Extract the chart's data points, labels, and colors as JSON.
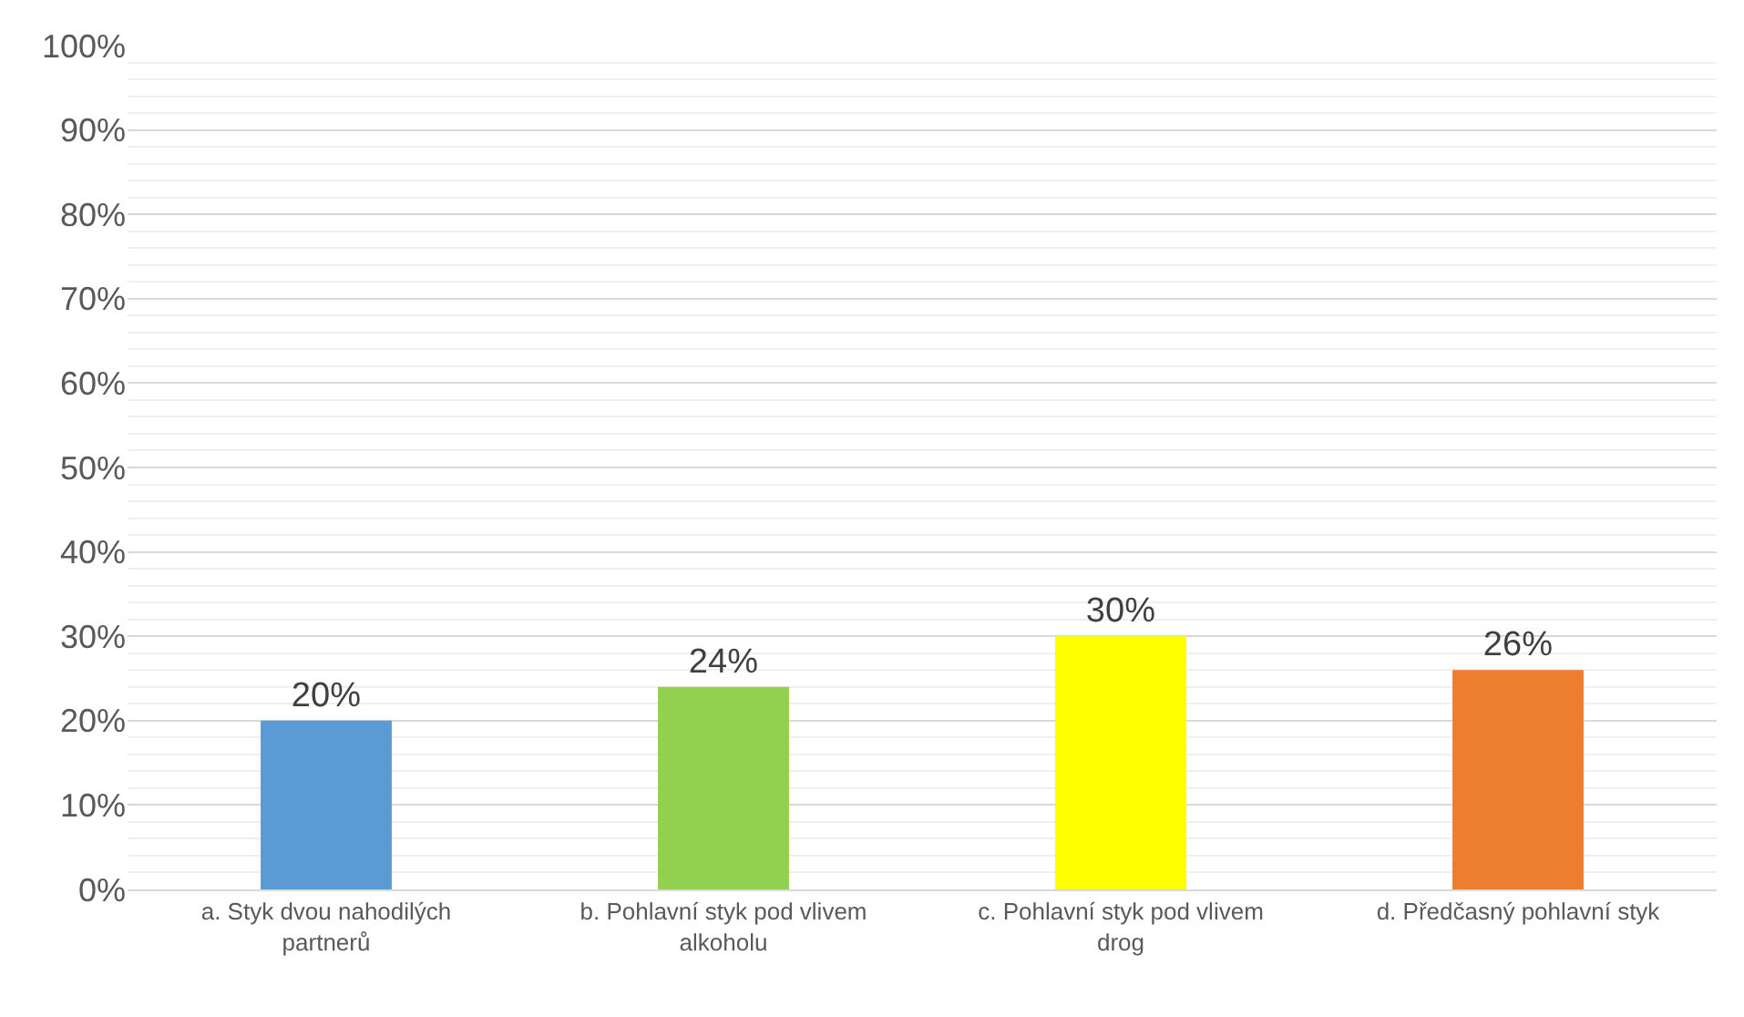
{
  "chart_data": {
    "type": "bar",
    "categories": [
      "a. Styk dvou nahodilých partnerů",
      "b. Pohlavní styk pod vlivem alkoholu",
      "c. Pohlavní styk pod vlivem drog",
      "d. Předčasný pohlavní styk"
    ],
    "values": [
      20,
      24,
      30,
      26
    ],
    "colors": [
      "#5b9bd5",
      "#92d050",
      "#ffff00",
      "#ed7d31"
    ],
    "value_labels": [
      "20%",
      "24%",
      "30%",
      "26%"
    ],
    "ylim": [
      0,
      100
    ],
    "yticks": [
      {
        "value": 0,
        "label": "0%"
      },
      {
        "value": 10,
        "label": "10%"
      },
      {
        "value": 20,
        "label": "20%"
      },
      {
        "value": 30,
        "label": "30%"
      },
      {
        "value": 40,
        "label": "40%"
      },
      {
        "value": 50,
        "label": "50%"
      },
      {
        "value": 60,
        "label": "60%"
      },
      {
        "value": 70,
        "label": "70%"
      },
      {
        "value": 80,
        "label": "80%"
      },
      {
        "value": 90,
        "label": "90%"
      },
      {
        "value": 100,
        "label": "100%"
      }
    ],
    "grid": true
  }
}
